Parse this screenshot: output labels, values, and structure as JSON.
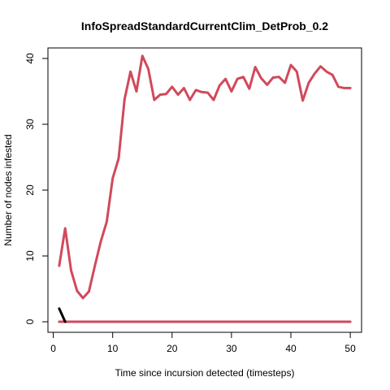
{
  "chart_data": {
    "type": "line",
    "title": "InfoSpreadStandardCurrentClim_DetProb_0.2",
    "xlabel": "Time since incursion detected (timesteps)",
    "ylabel": "Number of nodes infested",
    "xlim": [
      -0.9,
      51.9
    ],
    "ylim": [
      -1.6,
      41.6
    ],
    "xticks": [
      0,
      10,
      20,
      30,
      40,
      50
    ],
    "yticks": [
      0,
      10,
      20,
      30,
      40
    ],
    "grid": false,
    "series": [
      {
        "color": "#d1495b",
        "x": [
          1,
          2,
          3,
          4,
          5,
          6,
          7,
          8,
          9,
          10,
          11,
          12,
          13,
          14,
          15,
          16,
          17,
          18,
          19,
          20,
          21,
          22,
          23,
          24,
          25,
          26,
          27,
          28,
          29,
          30,
          31,
          32,
          33,
          34,
          35,
          36,
          37,
          38,
          39,
          40,
          41,
          42,
          43,
          44,
          45,
          46,
          47,
          48,
          49,
          50
        ],
        "values": [
          8.5,
          14.2,
          7.8,
          4.7,
          3.6,
          4.6,
          8.5,
          12.2,
          15.2,
          21.8,
          24.8,
          33.8,
          38.0,
          35.0,
          40.4,
          38.4,
          33.7,
          34.5,
          34.6,
          35.7,
          34.5,
          35.5,
          33.7,
          35.2,
          34.9,
          34.8,
          33.7,
          35.9,
          36.9,
          35.0,
          36.9,
          37.2,
          35.4,
          38.7,
          37.0,
          36.0,
          37.1,
          37.2,
          36.3,
          39.0,
          38.0,
          33.6,
          36.3,
          37.7,
          38.8,
          38.0,
          37.5,
          35.7,
          35.5,
          35.5
        ]
      },
      {
        "color": "#d1495b",
        "x": [
          1,
          50
        ],
        "values": [
          0,
          0
        ]
      },
      {
        "color": "#000000",
        "x": [
          1,
          2
        ],
        "values": [
          2.0,
          0
        ]
      }
    ]
  }
}
